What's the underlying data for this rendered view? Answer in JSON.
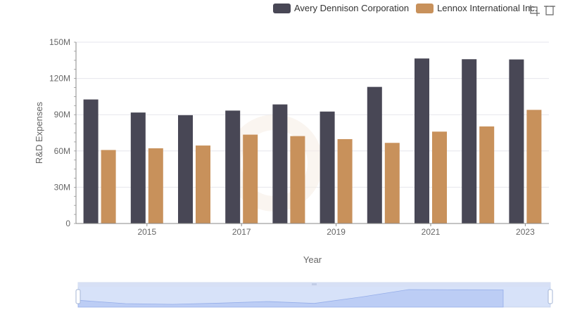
{
  "legend": {
    "items": [
      {
        "label": "Avery Dennison Corporation",
        "color": "#484755"
      },
      {
        "label": "Lennox International Inc.",
        "color": "#c8915b"
      }
    ]
  },
  "toolbar": {
    "icons": [
      "crop-icon",
      "restore-icon"
    ]
  },
  "chart_data": {
    "type": "bar",
    "xlabel": "Year",
    "ylabel": "R&D Expenses",
    "ylim": [
      0,
      150000000
    ],
    "y_ticks": [
      0,
      30000000,
      60000000,
      90000000,
      120000000,
      150000000
    ],
    "y_tick_labels": [
      "0",
      "30M",
      "60M",
      "90M",
      "120M",
      "150M"
    ],
    "x_tick_labels": [
      "2015",
      "2017",
      "2019",
      "2021",
      "2023"
    ],
    "categories": [
      "2014",
      "2015",
      "2016",
      "2017",
      "2018",
      "2019",
      "2020",
      "2021",
      "2022",
      "2023"
    ],
    "series": [
      {
        "name": "Avery Dennison Corporation",
        "color": "#484755",
        "values": [
          102600000,
          91800000,
          89600000,
          93400000,
          98500000,
          92600000,
          113000000,
          136500000,
          135900000,
          135700000
        ]
      },
      {
        "name": "Lennox International Inc.",
        "color": "#c8915b",
        "values": [
          60800000,
          62200000,
          64500000,
          73500000,
          72300000,
          69800000,
          66700000,
          76000000,
          80300000,
          94000000
        ]
      }
    ],
    "grid": true,
    "legend_position": "top-right",
    "data_zoom": {
      "range": [
        0,
        100
      ]
    }
  }
}
